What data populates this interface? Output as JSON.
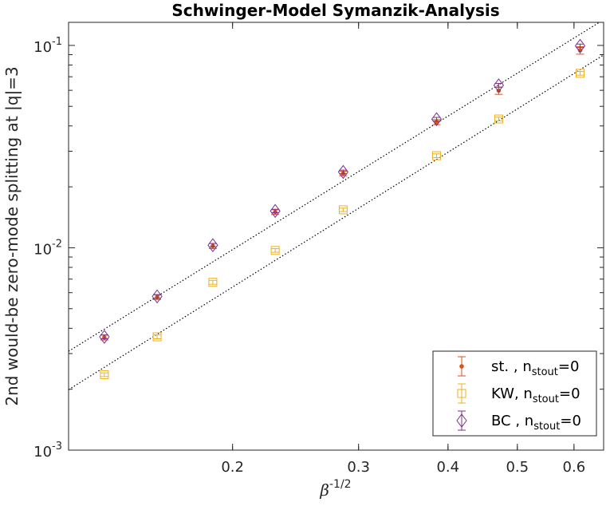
{
  "chart_data": {
    "type": "scatter",
    "title": "Schwinger-Model Symanzik-Analysis",
    "xlabel_base": "β",
    "xlabel_sup": "-1/2",
    "ylabel": "2nd would-be zero-mode splitting at |q|=3",
    "xscale": "log",
    "yscale": "log",
    "xlim": [
      0.118,
      0.66
    ],
    "ylim": [
      0.001,
      0.13
    ],
    "xticks": [
      {
        "v": 0.2,
        "label": "0.2"
      },
      {
        "v": 0.3,
        "label": "0.3"
      },
      {
        "v": 0.4,
        "label": "0.4"
      },
      {
        "v": 0.5,
        "label": "0.5"
      },
      {
        "v": 0.6,
        "label": "0.6"
      }
    ],
    "yticks": [
      {
        "v": 0.001,
        "base": "10",
        "exp": "-3"
      },
      {
        "v": 0.01,
        "base": "10",
        "exp": "-2"
      },
      {
        "v": 0.1,
        "base": "10",
        "exp": "-1"
      }
    ],
    "series": [
      {
        "name": "st. , n",
        "sub": "stout",
        "suffix": "=0",
        "marker": "dot",
        "color": "#d95319",
        "x": [
          0.1324,
          0.1569,
          0.1877,
          0.2294,
          0.2855,
          0.3856,
          0.4709,
          0.6119
        ],
        "y": [
          0.0036,
          0.0057,
          0.0102,
          0.015,
          0.0233,
          0.0418,
          0.0598,
          0.0945
        ],
        "err": [
          0.0001,
          0.00015,
          0.0003,
          0.0004,
          0.0006,
          0.0012,
          0.0025,
          0.004
        ]
      },
      {
        "name": "KW, n",
        "sub": "stout",
        "suffix": "=0",
        "marker": "square",
        "color": "#edb120",
        "x": [
          0.1324,
          0.1569,
          0.1877,
          0.2294,
          0.2855,
          0.3856,
          0.4709,
          0.6119
        ],
        "y": [
          0.00236,
          0.00363,
          0.00675,
          0.0097,
          0.0154,
          0.0285,
          0.0433,
          0.0728
        ],
        "err": [
          5e-05,
          8e-05,
          0.00015,
          0.0002,
          0.0003,
          0.0006,
          0.0009,
          0.0015
        ]
      },
      {
        "name": "BC , n",
        "sub": "stout",
        "suffix": "=0",
        "marker": "diamond",
        "color": "#7e2f8e",
        "x": [
          0.1324,
          0.1569,
          0.1877,
          0.2294,
          0.2855,
          0.3856,
          0.4709,
          0.6119
        ],
        "y": [
          0.00363,
          0.00575,
          0.0103,
          0.0152,
          0.0237,
          0.0432,
          0.0635,
          0.0995
        ],
        "err": [
          8e-05,
          0.00012,
          0.0002,
          0.0003,
          0.0005,
          0.0009,
          0.0014,
          0.002
        ]
      }
    ],
    "fits": [
      {
        "x": [
          0.118,
          0.66
        ],
        "y": [
          0.00308,
          0.134
        ],
        "color": "#000000"
      },
      {
        "x": [
          0.118,
          0.66
        ],
        "y": [
          0.00199,
          0.0897
        ],
        "color": "#000000"
      }
    ],
    "legend_location": "bottom-right",
    "grid": false
  }
}
